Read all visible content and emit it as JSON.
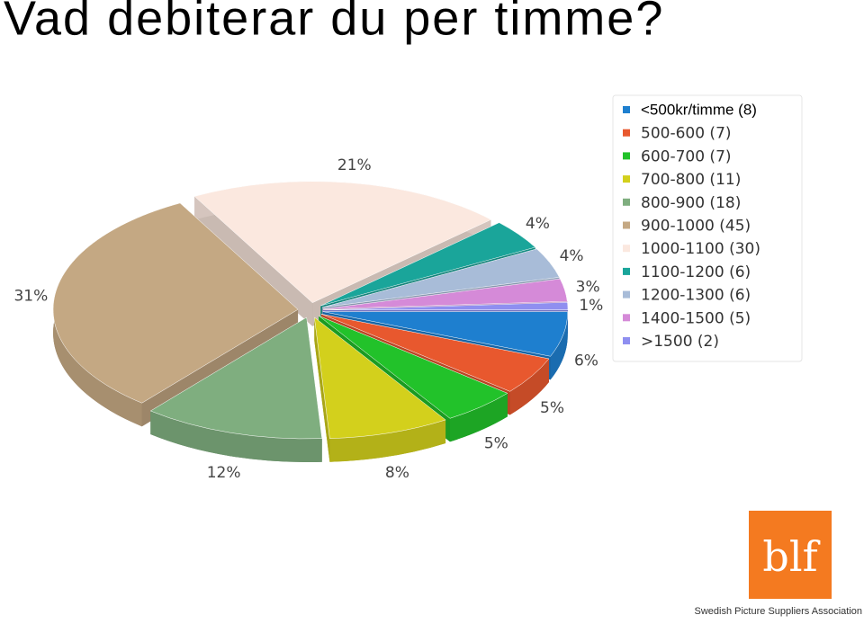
{
  "chart_data": {
    "type": "pie3d",
    "title": "Vad debiterar du per timme?",
    "categories": [
      "<500kr/timme (8)",
      "500-600 (7)",
      "600-700 (7)",
      "700-800 (11)",
      "800-900 (18)",
      "900-1000 (45)",
      "1000-1100 (30)",
      "1100-1200 (6)",
      "1200-1300 (6)",
      "1400-1500 (5)",
      ">1500 (2)"
    ],
    "values": [
      6,
      5,
      5,
      8,
      12,
      31,
      21,
      4,
      4,
      3,
      1
    ],
    "value_labels": [
      "6%",
      "5%",
      "5%",
      "8%",
      "12%",
      "31%",
      "21%",
      "4%",
      "4%",
      "3%",
      "1%"
    ],
    "colors": [
      "#1e7fcf",
      "#e8582e",
      "#22c22a",
      "#d3d01c",
      "#7fae7f",
      "#c4a883",
      "#fbe8df",
      "#1aa59a",
      "#a8bcd8",
      "#d58ad8",
      "#8f8ff0"
    ],
    "legend": "top-right"
  },
  "logo": {
    "text": "blf",
    "caption": "Swedish Picture Suppliers Association"
  }
}
